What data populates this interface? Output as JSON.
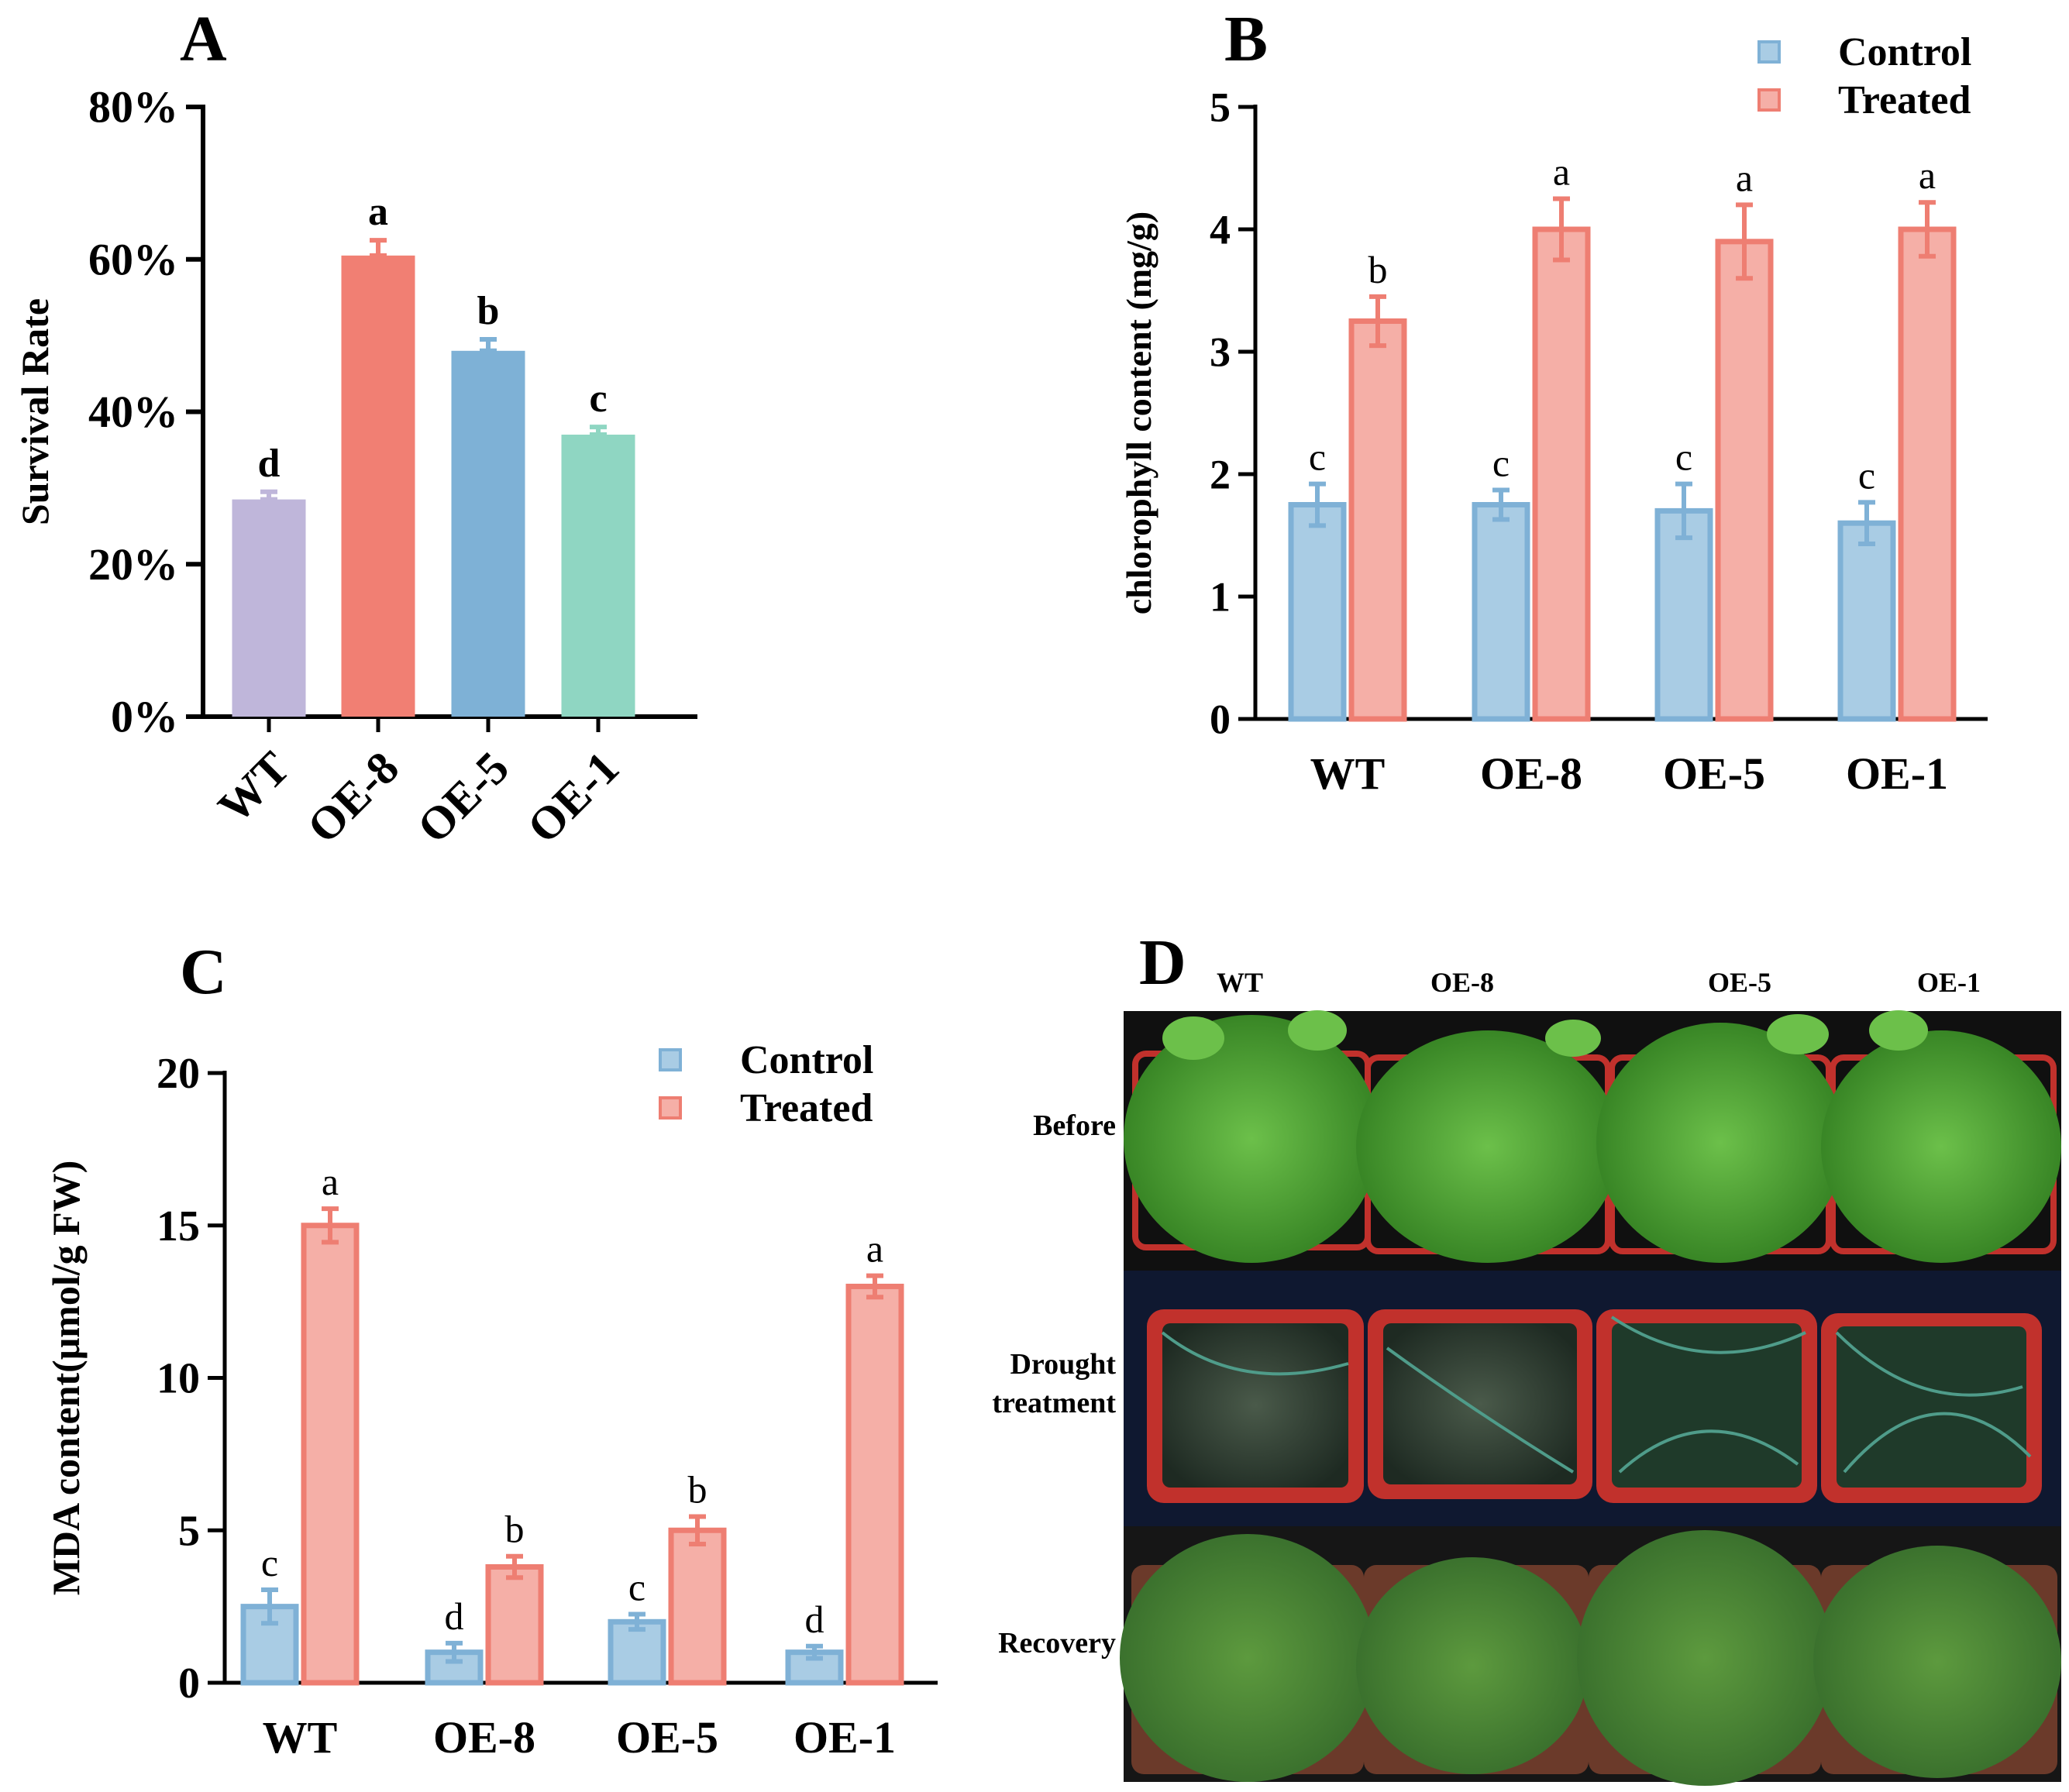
{
  "colors": {
    "control_fill": "#A9CCE4",
    "control_stroke": "#7FB1D6",
    "treated_fill": "#F5AFA7",
    "treated_stroke": "#EE7E72",
    "survival_fills": [
      "#BFB6DA",
      "#F17F73",
      "#7EB1D6",
      "#8FD6C2"
    ],
    "axis": "#000000",
    "photo_bg": "#0c1422",
    "pot_red": "#c1312c",
    "leaf_green": "#3f8f28"
  },
  "chart_data": [
    {
      "id": "A",
      "panel_label": "A",
      "type": "bar",
      "categories": [
        "WT",
        "OE-8",
        "OE-5",
        "OE-1"
      ],
      "values": [
        28.5,
        60.5,
        48.0,
        37.0
      ],
      "errors": [
        1.0,
        2.0,
        1.5,
        1.0
      ],
      "letters": [
        "d",
        "a",
        "b",
        "c"
      ],
      "ylabel": "Survival Rate",
      "ylim": [
        0,
        80
      ],
      "yticks": [
        0,
        20,
        40,
        60,
        80
      ],
      "ytick_labels": [
        "0%",
        "20%",
        "40%",
        "60%",
        "80%"
      ]
    },
    {
      "id": "B",
      "panel_label": "B",
      "type": "bar",
      "categories": [
        "WT",
        "OE-8",
        "OE-5",
        "OE-1"
      ],
      "series": [
        {
          "name": "Control",
          "values": [
            1.75,
            1.75,
            1.7,
            1.6
          ],
          "errors": [
            0.17,
            0.12,
            0.22,
            0.17
          ],
          "letters": [
            "c",
            "c",
            "c",
            "c"
          ]
        },
        {
          "name": "Treated",
          "values": [
            3.25,
            4.0,
            3.9,
            4.0
          ],
          "errors": [
            0.2,
            0.25,
            0.3,
            0.22
          ],
          "letters": [
            "b",
            "a",
            "a",
            "a"
          ]
        }
      ],
      "ylabel": "chlorophyll content (mg/g)",
      "ylim": [
        0,
        5
      ],
      "yticks": [
        0,
        1,
        2,
        3,
        4,
        5
      ],
      "ytick_labels": [
        "0",
        "1",
        "2",
        "3",
        "4",
        "5"
      ],
      "legend": [
        "Control",
        "Treated"
      ],
      "legend_position": "top-right"
    },
    {
      "id": "C",
      "panel_label": "C",
      "type": "bar",
      "categories": [
        "WT",
        "OE-8",
        "OE-5",
        "OE-1"
      ],
      "series": [
        {
          "name": "Control",
          "values": [
            2.5,
            1.0,
            2.0,
            1.0
          ],
          "errors": [
            0.55,
            0.3,
            0.25,
            0.2
          ],
          "letters": [
            "c",
            "d",
            "c",
            "d"
          ]
        },
        {
          "name": "Treated",
          "values": [
            15.0,
            3.8,
            5.0,
            13.0
          ],
          "errors": [
            0.55,
            0.35,
            0.45,
            0.35
          ],
          "letters": [
            "a",
            "b",
            "b",
            "a"
          ]
        }
      ],
      "ylabel": "MDA content(μmol/g FW)",
      "ylim": [
        0,
        20
      ],
      "yticks": [
        0,
        5,
        10,
        15,
        20
      ],
      "ytick_labels": [
        "0",
        "5",
        "10",
        "15",
        "20"
      ],
      "legend": [
        "Control",
        "Treated"
      ],
      "legend_position": "top-right"
    }
  ],
  "panel_d": {
    "panel_label": "D",
    "columns": [
      "WT",
      "OE-8",
      "OE-5",
      "OE-1"
    ],
    "rows": [
      "Before",
      "Drought\ntreatment",
      "Recovery"
    ]
  }
}
